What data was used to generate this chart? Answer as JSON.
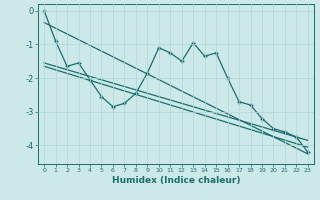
{
  "xlabel": "Humidex (Indice chaleur)",
  "ylabel": "",
  "bg_color": "#cce8e8",
  "line_color": "#1a6e6e",
  "grid_color": "#b0d8d8",
  "xlim": [
    -0.5,
    23.5
  ],
  "ylim": [
    -4.55,
    0.2
  ],
  "xticks": [
    0,
    1,
    2,
    3,
    4,
    5,
    6,
    7,
    8,
    9,
    10,
    11,
    12,
    13,
    14,
    15,
    16,
    17,
    18,
    19,
    20,
    21,
    22,
    23
  ],
  "yticks": [
    0,
    -1,
    -2,
    -3,
    -4
  ],
  "wavy_x": [
    0,
    1,
    2,
    3,
    4,
    5,
    6,
    7,
    8,
    9,
    10,
    11,
    12,
    13,
    14,
    15,
    16,
    17,
    18,
    19,
    20,
    21,
    22,
    23
  ],
  "wavy_y": [
    0.0,
    -0.9,
    -1.65,
    -1.55,
    -2.05,
    -2.55,
    -2.85,
    -2.75,
    -2.45,
    -1.85,
    -1.1,
    -1.25,
    -1.5,
    -0.95,
    -1.35,
    -1.25,
    -2.0,
    -2.7,
    -2.8,
    -3.2,
    -3.5,
    -3.6,
    -3.75,
    -4.2
  ],
  "line1_x": [
    0,
    23
  ],
  "line1_y": [
    -0.35,
    -4.25
  ],
  "line2_x": [
    0,
    23
  ],
  "line2_y": [
    -1.55,
    -3.85
  ],
  "line3_x": [
    0,
    23
  ],
  "line3_y": [
    -1.65,
    -4.05
  ]
}
